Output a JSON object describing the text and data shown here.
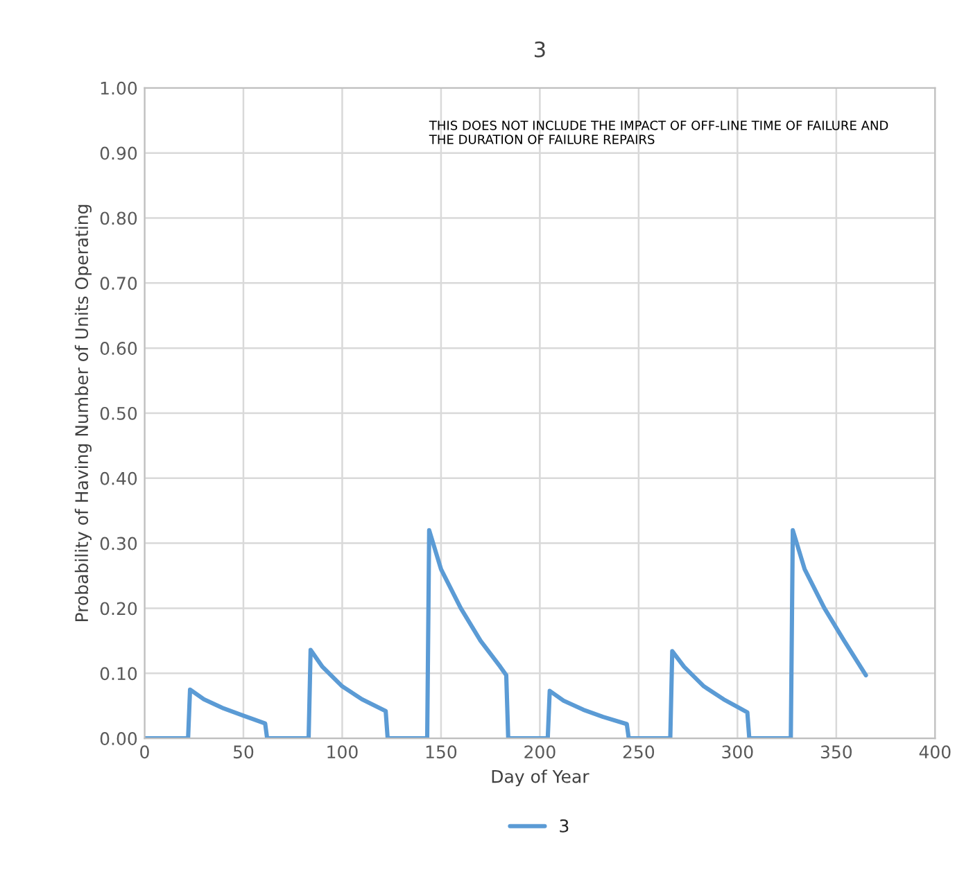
{
  "chart_data": {
    "type": "line",
    "title": "3",
    "xlabel": "Day of Year",
    "ylabel": "Probability of Having Number of Units Operating",
    "annotations": [
      "THIS DOES NOT INCLUDE THE IMPACT OF OFF-LINE TIME OF FAILURE AND\nTHE DURATION OF FAILURE REPAIRS"
    ],
    "series": [
      {
        "name": "3",
        "color": "#5b9bd5",
        "x": [
          0,
          22,
          23,
          30,
          40,
          50,
          61,
          62,
          83,
          84,
          90,
          100,
          110,
          122,
          123,
          143,
          144,
          150,
          160,
          170,
          180,
          183,
          184,
          204,
          205,
          212,
          222,
          232,
          244,
          245,
          266,
          267,
          273,
          283,
          293,
          305,
          306,
          327,
          328,
          334,
          344,
          354,
          365
        ],
        "values": [
          0,
          0,
          0.075,
          0.06,
          0.046,
          0.035,
          0.023,
          0,
          0,
          0.136,
          0.11,
          0.08,
          0.06,
          0.042,
          0,
          0,
          0.32,
          0.26,
          0.2,
          0.15,
          0.11,
          0.097,
          0,
          0,
          0.073,
          0.058,
          0.044,
          0.033,
          0.022,
          0,
          0,
          0.134,
          0.11,
          0.08,
          0.06,
          0.04,
          0,
          0,
          0.32,
          0.26,
          0.2,
          0.15,
          0.097
        ]
      }
    ],
    "xlim": [
      0,
      400
    ],
    "xticks": [
      0,
      50,
      100,
      150,
      200,
      250,
      300,
      350,
      400
    ],
    "ylim": [
      0,
      1
    ],
    "yticks": [
      {
        "value": 0,
        "label": "0.00"
      },
      {
        "value": 0.1,
        "label": "0.10"
      },
      {
        "value": 0.2,
        "label": "0.20"
      },
      {
        "value": 0.3,
        "label": "0.30"
      },
      {
        "value": 0.4,
        "label": "0.40"
      },
      {
        "value": 0.5,
        "label": "0.50"
      },
      {
        "value": 0.6,
        "label": "0.60"
      },
      {
        "value": 0.7,
        "label": "0.70"
      },
      {
        "value": 0.8,
        "label": "0.80"
      },
      {
        "value": 0.9,
        "label": "0.90"
      },
      {
        "value": 1,
        "label": "1.00"
      }
    ],
    "grid": true,
    "legend": "bottom",
    "marker": "none",
    "line_style": "solid"
  }
}
